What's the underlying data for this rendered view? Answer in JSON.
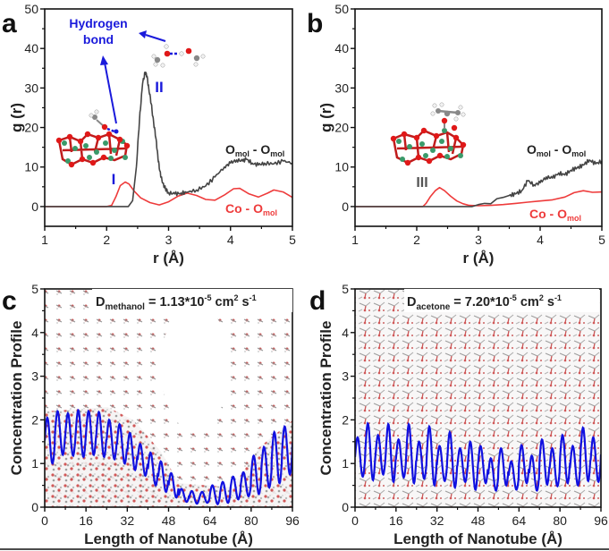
{
  "figure": {
    "bottom_rule": true
  },
  "chart_data": [
    {
      "panel": "a",
      "type": "line",
      "title": "",
      "xlabel": "r (Å)",
      "ylabel": "g (r)",
      "xlim": [
        1,
        5
      ],
      "ylim": [
        -5,
        50
      ],
      "xticks": [
        1,
        2,
        3,
        4,
        5
      ],
      "yticks": [
        0,
        10,
        20,
        30,
        40,
        50
      ],
      "grid": false,
      "series": [
        {
          "name": "Co - O_mol",
          "label_main": "Co - O",
          "label_sub": "mol",
          "color": "#ee3b3b",
          "x": [
            1.0,
            2.0,
            2.08,
            2.15,
            2.22,
            2.3,
            2.36,
            2.45,
            2.55,
            2.7,
            2.85,
            3.0,
            3.15,
            3.3,
            3.45,
            3.6,
            3.75,
            3.9,
            4.05,
            4.15,
            4.3,
            4.45,
            4.6,
            4.7,
            4.85,
            5.0
          ],
          "y": [
            0,
            0,
            0.3,
            2.5,
            5.3,
            6.2,
            5.7,
            3.8,
            2.2,
            1.0,
            0.4,
            1.2,
            2.6,
            3.4,
            2.8,
            1.8,
            1.6,
            2.9,
            4.5,
            4.6,
            3.2,
            2.4,
            3.4,
            4.2,
            3.7,
            2.3
          ]
        },
        {
          "name": "O_mol - O_mol",
          "label_main": "O",
          "label_mid": " - O",
          "label_sub": "mol",
          "color": "#444444",
          "x": [
            1.0,
            2.35,
            2.42,
            2.48,
            2.53,
            2.58,
            2.62,
            2.65,
            2.68,
            2.72,
            2.76,
            2.8,
            2.83,
            2.86,
            2.9,
            2.95,
            3.0,
            3.1,
            3.2,
            3.3,
            3.45,
            3.6,
            3.75,
            3.9,
            4.0,
            4.1,
            4.2,
            4.25,
            4.35,
            4.45,
            4.55,
            4.7,
            4.85,
            5.0
          ],
          "y": [
            0,
            0,
            1.5,
            10,
            22,
            31,
            34,
            33,
            30,
            26,
            21,
            17,
            12,
            9,
            6,
            4.5,
            3.5,
            3.2,
            3.4,
            3.6,
            4.2,
            5.2,
            7.5,
            10,
            11,
            11.8,
            11.5,
            12,
            11,
            10.5,
            11,
            10.8,
            11.5,
            11
          ]
        }
      ],
      "annotations": [
        {
          "text": "Hydrogen",
          "color": "#1a1adb"
        },
        {
          "text": "bond",
          "color": "#1a1adb"
        },
        {
          "text": "I",
          "color": "#1a1adb"
        },
        {
          "text": "II",
          "color": "#1a1adb"
        }
      ]
    },
    {
      "panel": "b",
      "type": "line",
      "title": "",
      "xlabel": "r (Å)",
      "ylabel": "g (r)",
      "xlim": [
        1,
        5
      ],
      "ylim": [
        -5,
        50
      ],
      "xticks": [
        1,
        2,
        3,
        4,
        5
      ],
      "yticks": [
        0,
        10,
        20,
        30,
        40,
        50
      ],
      "grid": false,
      "series": [
        {
          "name": "Co - O_mol",
          "label_main": "Co - O",
          "label_sub": "mol",
          "color": "#ee3b3b",
          "x": [
            1.0,
            2.1,
            2.15,
            2.22,
            2.3,
            2.37,
            2.45,
            2.55,
            2.65,
            2.75,
            2.85,
            3.0,
            3.2,
            3.4,
            3.6,
            3.8,
            4.0,
            4.2,
            4.4,
            4.55,
            4.7,
            4.85,
            5.0
          ],
          "y": [
            0,
            0,
            0.8,
            2.5,
            4.0,
            4.8,
            4.0,
            2.6,
            1.4,
            0.7,
            0.3,
            0.2,
            0.3,
            0.5,
            0.8,
            1.1,
            1.4,
            1.7,
            2.4,
            3.5,
            4.0,
            3.6,
            3.7
          ]
        },
        {
          "name": "O_mol - O_mol",
          "label_main": "O",
          "label_mid": " - O",
          "label_sub": "mol",
          "color": "#444444",
          "x": [
            1.0,
            2.9,
            3.0,
            3.1,
            3.2,
            3.3,
            3.4,
            3.5,
            3.6,
            3.7,
            3.8,
            3.9,
            4.0,
            4.1,
            4.2,
            4.3,
            4.4,
            4.5,
            4.6,
            4.7,
            4.8,
            4.9,
            5.0
          ],
          "y": [
            0,
            0,
            0.5,
            0.8,
            0.7,
            2.0,
            2.3,
            2.8,
            3.2,
            4.0,
            6.5,
            5.5,
            6.0,
            7.5,
            7.2,
            8.5,
            8.0,
            9.2,
            9.8,
            10.5,
            11.8,
            10.8,
            11.5
          ]
        }
      ],
      "annotations": [
        {
          "text": "III",
          "color": "#555555"
        }
      ]
    },
    {
      "panel": "c",
      "type": "line",
      "title": "",
      "xlabel": "Length of Nanotube (Å)",
      "ylabel": "Concentration Profile",
      "xlim": [
        0,
        96
      ],
      "ylim": [
        0,
        5
      ],
      "xticks": [
        0,
        16,
        32,
        48,
        64,
        80,
        96
      ],
      "yticks": [
        0,
        1,
        2,
        3,
        4,
        5
      ],
      "grid": false,
      "annotation": {
        "main": "D",
        "sub": "methanol",
        "value": " = 1.13*10",
        "exp": "-5",
        "unit1": " cm",
        "unit1_exp": "2",
        "unit2": " s",
        "unit2_exp": "-1"
      },
      "series": [
        {
          "name": "methanol concentration",
          "color": "#1010e0",
          "period": 4.0,
          "peaks": [
            2.05,
            2.2,
            2.15,
            2.22,
            2.2,
            2.18,
            2.0,
            1.9,
            1.7,
            1.45,
            1.25,
            1.05,
            0.78,
            0.42,
            0.37,
            0.35,
            0.5,
            0.58,
            0.7,
            0.8,
            1.18,
            1.38,
            1.72,
            1.85,
            2.05
          ],
          "troughs": [
            1.0,
            1.2,
            1.18,
            1.15,
            1.2,
            1.15,
            1.1,
            1.0,
            0.85,
            0.72,
            0.5,
            0.35,
            0.22,
            0.12,
            0.08,
            0.1,
            0.07,
            0.1,
            0.18,
            0.25,
            0.3,
            0.45,
            0.55,
            0.75,
            0.9
          ]
        }
      ]
    },
    {
      "panel": "d",
      "type": "line",
      "title": "",
      "xlabel": "Length of Nanotube (Å)",
      "ylabel": "Concentration Profile",
      "xlim": [
        0,
        96
      ],
      "ylim": [
        0,
        5
      ],
      "xticks": [
        0,
        16,
        32,
        48,
        64,
        80,
        96
      ],
      "yticks": [
        0,
        1,
        2,
        3,
        4,
        5
      ],
      "grid": false,
      "annotation": {
        "main": "D",
        "sub": "acetone",
        "value": " = 7.20*10",
        "exp": "-5",
        "unit1": " cm",
        "unit1_exp": "2",
        "unit2": " s",
        "unit2_exp": "-1"
      },
      "series": [
        {
          "name": "acetone concentration",
          "color": "#1010e0",
          "period": 4.0,
          "peaks": [
            1.6,
            1.92,
            1.65,
            1.9,
            1.55,
            1.9,
            1.5,
            1.85,
            1.4,
            1.72,
            1.35,
            1.5,
            1.4,
            1.12,
            1.35,
            1.05,
            1.42,
            1.18,
            1.55,
            1.35,
            1.65,
            1.4,
            1.82,
            1.6,
            1.8
          ],
          "troughs": [
            0.7,
            0.62,
            0.75,
            0.58,
            0.68,
            0.55,
            0.65,
            0.5,
            0.6,
            0.45,
            0.58,
            0.4,
            0.55,
            0.38,
            0.5,
            0.4,
            0.55,
            0.38,
            0.52,
            0.48,
            0.55,
            0.5,
            0.6,
            0.58,
            0.62
          ]
        }
      ]
    }
  ]
}
